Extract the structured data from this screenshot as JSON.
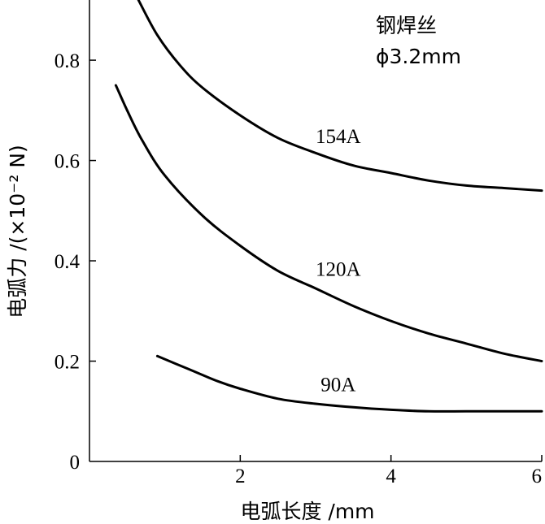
{
  "chart_data": {
    "type": "line",
    "xlabel": "电弧长度 /mm",
    "ylabel": "电弧力 /(×10⁻² N)",
    "xlim": [
      0,
      6
    ],
    "ylim": [
      0,
      0.92
    ],
    "x_ticks": [
      "2",
      "4",
      "6"
    ],
    "y_ticks": [
      {
        "value": 0,
        "label": "0"
      },
      {
        "value": 0.2,
        "label": "0.2"
      },
      {
        "value": 0.4,
        "label": "0.4"
      },
      {
        "value": 0.6,
        "label": "0.6"
      },
      {
        "value": 0.8,
        "label": "0.8"
      }
    ],
    "annotation": [
      "钢焊丝",
      "ϕ3.2mm"
    ],
    "series": [
      {
        "name": "154A",
        "x": [
          0.65,
          0.9,
          1.2,
          1.5,
          2.0,
          2.5,
          3.0,
          3.5,
          4.0,
          4.5,
          5.0,
          5.5,
          6.0
        ],
        "y": [
          0.92,
          0.85,
          0.79,
          0.745,
          0.69,
          0.645,
          0.615,
          0.59,
          0.575,
          0.56,
          0.55,
          0.545,
          0.54
        ]
      },
      {
        "name": "120A",
        "x": [
          0.35,
          0.5,
          0.7,
          1.0,
          1.5,
          2.0,
          2.5,
          3.0,
          3.5,
          4.0,
          4.5,
          5.0,
          5.5,
          6.0
        ],
        "y": [
          0.75,
          0.7,
          0.64,
          0.57,
          0.49,
          0.43,
          0.38,
          0.345,
          0.31,
          0.28,
          0.255,
          0.235,
          0.215,
          0.2
        ]
      },
      {
        "name": "90A",
        "x": [
          0.9,
          1.3,
          1.7,
          2.0,
          2.5,
          3.0,
          3.5,
          4.0,
          4.5,
          5.0,
          5.5,
          6.0
        ],
        "y": [
          0.21,
          0.185,
          0.16,
          0.145,
          0.125,
          0.115,
          0.108,
          0.103,
          0.1,
          0.1,
          0.1,
          0.1
        ]
      }
    ],
    "grid": false,
    "legend": "none (series labeled inline)"
  }
}
